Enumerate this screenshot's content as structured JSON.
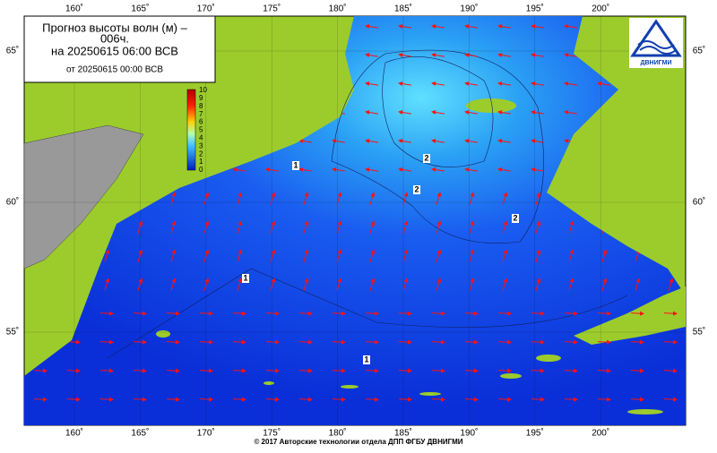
{
  "title": {
    "lines": [
      "Прогноз высоты волн (м) –",
      "006ч.",
      "на 20250615 06:00 ВСВ",
      "от 20250615 00:00 ВСВ"
    ]
  },
  "logo": {
    "label": "ДВНИГМИ"
  },
  "colorbar": {
    "labels": [
      "10",
      "9",
      "8",
      "7",
      "6",
      "5",
      "4",
      "3",
      "2",
      "1",
      "0"
    ]
  },
  "lon_labels": [
    "160˚",
    "165˚",
    "170˚",
    "175˚",
    "180˚",
    "185˚",
    "190˚",
    "195˚",
    "200˚"
  ],
  "lat_labels": [
    "65˚",
    "60˚",
    "55˚"
  ],
  "contour_labels": [
    "1",
    "2",
    "2",
    "2",
    "1",
    "1"
  ],
  "footer": "© 2017 Авторские технологии отдела ДПП ФГБУ ДВНИГМИ"
}
